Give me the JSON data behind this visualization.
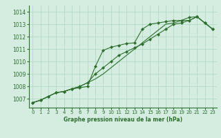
{
  "title": "Graphe pression niveau de la mer (hPa)",
  "bg_color": "#d4ede0",
  "grid_color": "#b2d9c4",
  "line_color": "#2d6e2d",
  "marker_color": "#2d6e2d",
  "xlim": [
    -0.5,
    23.5
  ],
  "ylim": [
    1006.3,
    1014.5
  ],
  "yticks": [
    1007,
    1008,
    1009,
    1010,
    1011,
    1012,
    1013,
    1014
  ],
  "xticks": [
    0,
    1,
    2,
    3,
    4,
    5,
    6,
    7,
    8,
    9,
    10,
    11,
    12,
    13,
    14,
    15,
    16,
    17,
    18,
    19,
    20,
    21,
    22,
    23
  ],
  "line1_x": [
    0,
    1,
    2,
    3,
    4,
    5,
    6,
    7,
    8,
    9,
    10,
    11,
    12,
    13,
    14,
    15,
    16,
    17,
    18,
    19,
    20,
    21,
    22,
    23
  ],
  "line1_y": [
    1006.7,
    1006.9,
    1007.2,
    1007.5,
    1007.6,
    1007.8,
    1007.9,
    1008.0,
    1009.6,
    1010.9,
    1011.15,
    1011.3,
    1011.45,
    1011.5,
    1012.6,
    1013.0,
    1013.1,
    1013.2,
    1013.3,
    1013.3,
    1013.55,
    1013.6,
    1013.1,
    1012.6
  ],
  "line2_x": [
    0,
    1,
    2,
    3,
    4,
    5,
    6,
    7,
    8,
    9,
    10,
    11,
    12,
    13,
    14,
    15,
    16,
    17,
    18,
    19,
    20,
    21,
    22,
    23
  ],
  "line2_y": [
    1006.7,
    1006.9,
    1007.2,
    1007.5,
    1007.6,
    1007.8,
    1008.0,
    1008.3,
    1009.0,
    1009.5,
    1010.0,
    1010.5,
    1010.8,
    1011.1,
    1011.4,
    1011.8,
    1012.2,
    1012.6,
    1013.0,
    1013.1,
    1013.3,
    1013.6,
    1013.1,
    1012.6
  ],
  "line3_x": [
    0,
    1,
    2,
    3,
    4,
    5,
    6,
    7,
    8,
    9,
    10,
    11,
    12,
    13,
    14,
    15,
    16,
    17,
    18,
    19,
    20,
    21,
    22,
    23
  ],
  "line3_y": [
    1006.7,
    1006.9,
    1007.2,
    1007.5,
    1007.6,
    1007.8,
    1008.0,
    1008.3,
    1008.6,
    1009.0,
    1009.5,
    1010.0,
    1010.5,
    1011.0,
    1011.5,
    1012.0,
    1012.5,
    1013.0,
    1013.1,
    1013.3,
    1013.3,
    1013.6,
    1013.1,
    1012.6
  ],
  "tick_fontsize": 5,
  "label_fontsize": 5.5,
  "lw": 0.8,
  "ms": 2.2
}
